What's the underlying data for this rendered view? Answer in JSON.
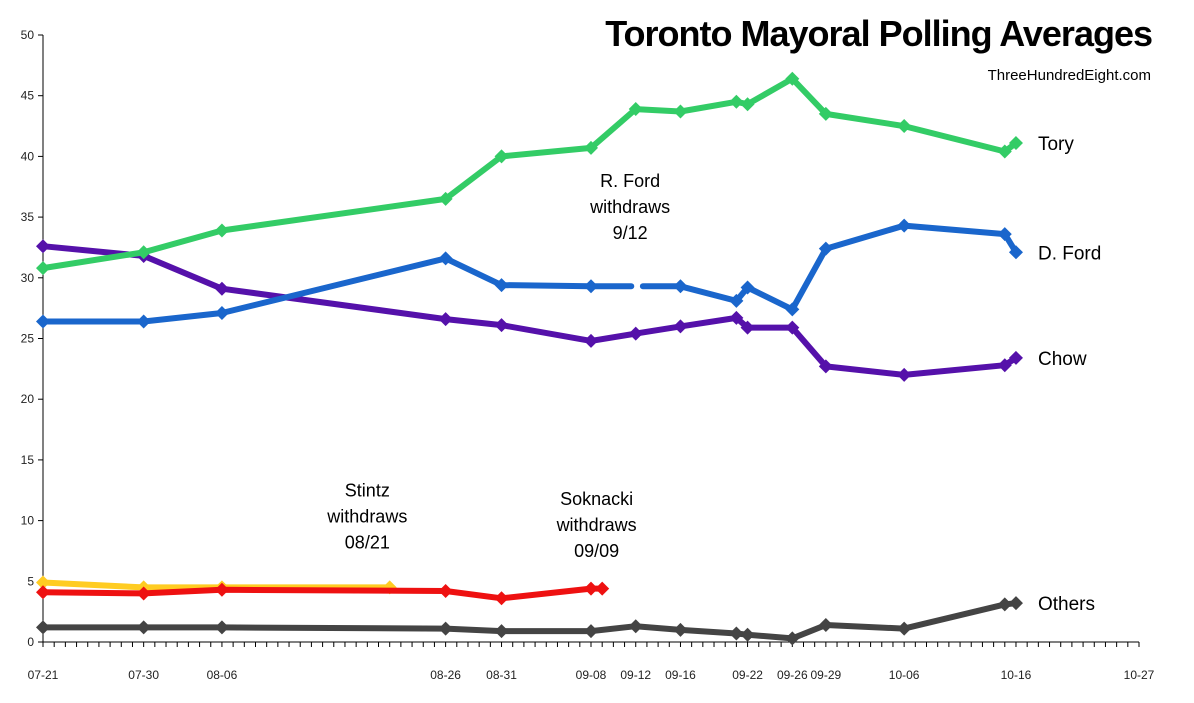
{
  "chart_data": {
    "type": "line",
    "title": "Toronto Mayoral Polling Averages",
    "subtitle": "ThreeHundredEight.com",
    "xlabel": "",
    "ylabel": "",
    "ylim": [
      0,
      50
    ],
    "yticks": [
      0,
      5,
      10,
      15,
      20,
      25,
      30,
      35,
      40,
      45,
      50
    ],
    "x_start": "07-21",
    "x_end": "10-27",
    "x_tick_labels": [
      {
        "day": 0,
        "label": "07-21"
      },
      {
        "day": 9,
        "label": "07-30"
      },
      {
        "day": 16,
        "label": "08-06"
      },
      {
        "day": 36,
        "label": "08-26"
      },
      {
        "day": 41,
        "label": "08-31"
      },
      {
        "day": 49,
        "label": "09-08"
      },
      {
        "day": 53,
        "label": "09-12"
      },
      {
        "day": 57,
        "label": "09-16"
      },
      {
        "day": 63,
        "label": "09-22"
      },
      {
        "day": 67,
        "label": "09-26"
      },
      {
        "day": 70,
        "label": "09-29"
      },
      {
        "day": 77,
        "label": "10-06"
      },
      {
        "day": 87,
        "label": "10-16"
      },
      {
        "day": 98,
        "label": "10-27"
      }
    ],
    "series": [
      {
        "name": "Tory",
        "color": "#33cc66",
        "label": "Tory",
        "points": [
          [
            0,
            30.8
          ],
          [
            9,
            32.1
          ],
          [
            16,
            33.9
          ],
          [
            36,
            36.5
          ],
          [
            41,
            40.0
          ],
          [
            49,
            40.7
          ],
          [
            53,
            43.9
          ],
          [
            57,
            43.7
          ],
          [
            62,
            44.5
          ],
          [
            63,
            44.3
          ],
          [
            67,
            46.4
          ],
          [
            70,
            43.5
          ],
          [
            77,
            42.5
          ],
          [
            86,
            40.4
          ],
          [
            87,
            41.1
          ]
        ]
      },
      {
        "name": "D. Ford",
        "color": "#1a66cc",
        "label": "D. Ford",
        "points": [
          [
            0,
            26.4
          ],
          [
            9,
            26.4
          ],
          [
            16,
            27.1
          ],
          [
            36,
            31.6
          ],
          [
            41,
            29.4
          ],
          [
            49,
            29.3
          ],
          [
            57,
            29.3
          ],
          [
            62,
            28.1
          ],
          [
            63,
            29.2
          ],
          [
            67,
            27.4
          ],
          [
            70,
            32.4
          ],
          [
            77,
            34.3
          ],
          [
            86,
            33.6
          ],
          [
            87,
            32.1
          ]
        ],
        "gap_after_index": 5
      },
      {
        "name": "Chow",
        "color": "#5511aa",
        "label": "Chow",
        "points": [
          [
            0,
            32.6
          ],
          [
            9,
            31.8
          ],
          [
            16,
            29.1
          ],
          [
            36,
            26.6
          ],
          [
            41,
            26.1
          ],
          [
            49,
            24.8
          ],
          [
            53,
            25.4
          ],
          [
            57,
            26.0
          ],
          [
            62,
            26.7
          ],
          [
            63,
            25.9
          ],
          [
            67,
            25.9
          ],
          [
            70,
            22.7
          ],
          [
            77,
            22.0
          ],
          [
            86,
            22.8
          ],
          [
            87,
            23.4
          ]
        ]
      },
      {
        "name": "Stintz",
        "color": "#ffcc22",
        "label": "",
        "points": [
          [
            0,
            4.9
          ],
          [
            9,
            4.5
          ],
          [
            16,
            4.5
          ],
          [
            31,
            4.5
          ]
        ]
      },
      {
        "name": "Soknacki",
        "color": "#ee1111",
        "label": "",
        "points": [
          [
            0,
            4.1
          ],
          [
            9,
            4.0
          ],
          [
            16,
            4.3
          ],
          [
            36,
            4.2
          ],
          [
            41,
            3.6
          ],
          [
            49,
            4.4
          ],
          [
            50,
            4.4
          ]
        ]
      },
      {
        "name": "Others",
        "color": "#444444",
        "label": "Others",
        "points": [
          [
            0,
            1.2
          ],
          [
            9,
            1.2
          ],
          [
            16,
            1.2
          ],
          [
            36,
            1.1
          ],
          [
            41,
            0.9
          ],
          [
            49,
            0.9
          ],
          [
            53,
            1.3
          ],
          [
            57,
            1.0
          ],
          [
            62,
            0.7
          ],
          [
            63,
            0.6
          ],
          [
            67,
            0.3
          ],
          [
            70,
            1.4
          ],
          [
            77,
            1.1
          ],
          [
            86,
            3.1
          ],
          [
            87,
            3.2
          ]
        ]
      }
    ],
    "annotations": [
      {
        "name": "ford-withdraws",
        "lines": [
          "R. Ford",
          "withdraws",
          "9/12"
        ],
        "day": 52.5,
        "value": 37.5
      },
      {
        "name": "stintz-withdraws",
        "lines": [
          "Stintz",
          "withdraws",
          "08/21"
        ],
        "day": 29,
        "value": 12.0
      },
      {
        "name": "soknacki-withdraws",
        "lines": [
          "Soknacki",
          "withdraws",
          "09/09"
        ],
        "day": 49.5,
        "value": 11.3
      }
    ],
    "grid": false
  }
}
